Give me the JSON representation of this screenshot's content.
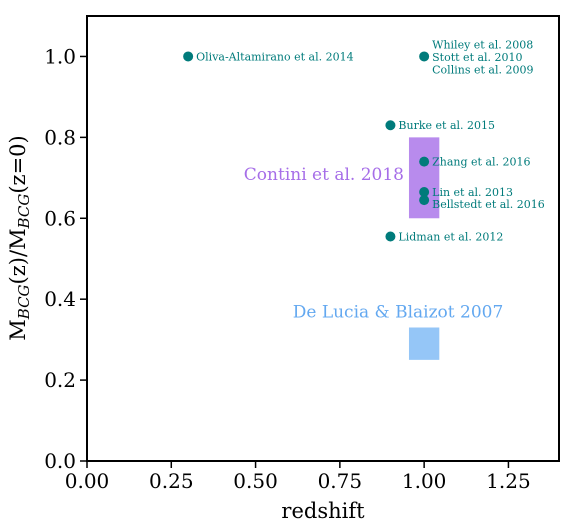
{
  "chart_data": {
    "type": "scatter",
    "xlabel": "redshift",
    "ylabel": "M_BCG(z)/M_BCG(z=0)",
    "xlim": [
      0.0,
      1.4
    ],
    "ylim": [
      0.0,
      1.1
    ],
    "xticks": [
      "0.00",
      "0.25",
      "0.50",
      "0.75",
      "1.00",
      "1.25"
    ],
    "xtick_values": [
      0.0,
      0.25,
      0.5,
      0.75,
      1.0,
      1.25
    ],
    "yticks": [
      "0.0",
      "0.2",
      "0.4",
      "0.6",
      "0.8",
      "1.0"
    ],
    "ytick_values": [
      0.0,
      0.2,
      0.4,
      0.6,
      0.8,
      1.0
    ],
    "grid": false,
    "point_color": "#007b7b",
    "points": [
      {
        "x": 0.3,
        "y": 1.0,
        "labels": [
          "Oliva-Altamirano et al. 2014"
        ],
        "label_side": "right"
      },
      {
        "x": 1.0,
        "y": 1.0,
        "labels": [
          "Whiley et al. 2008",
          "Stott et al. 2010",
          "Collins et al. 2009"
        ],
        "label_side": "right-stack"
      },
      {
        "x": 0.9,
        "y": 0.83,
        "labels": [
          "Burke et al. 2015"
        ],
        "label_side": "right"
      },
      {
        "x": 1.0,
        "y": 0.74,
        "labels": [
          "Zhang et al. 2016"
        ],
        "label_side": "right"
      },
      {
        "x": 1.0,
        "y": 0.665,
        "labels": [
          "Lin et al. 2013"
        ],
        "label_side": "right"
      },
      {
        "x": 1.0,
        "y": 0.645,
        "labels": [
          "Bellstedt et al. 2016"
        ],
        "label_side": "right-below"
      },
      {
        "x": 0.9,
        "y": 0.555,
        "labels": [
          "Lidman et al. 2012"
        ],
        "label_side": "right"
      }
    ],
    "regions": [
      {
        "name": "Contini et al. 2018",
        "x": [
          0.955,
          1.045
        ],
        "y": [
          0.6,
          0.8
        ],
        "color": "#a66ee8",
        "text_color": "#a66ee8"
      },
      {
        "name": "De Lucia & Blaizot 2007",
        "x": [
          0.955,
          1.045
        ],
        "y": [
          0.25,
          0.33
        ],
        "color": "#7ab8f5",
        "text_color": "#63a8f0"
      }
    ]
  }
}
